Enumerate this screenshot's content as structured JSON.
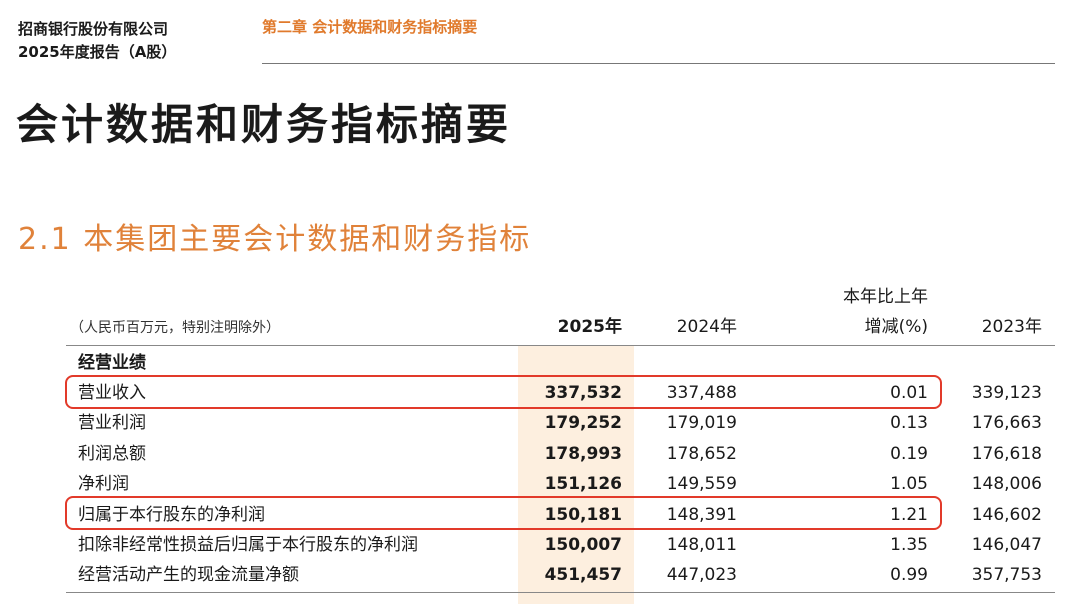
{
  "header": {
    "company": "招商银行股份有限公司",
    "report": "2025年度报告（A股）",
    "chapter": "第二章 会计数据和财务指标摘要"
  },
  "title": "会计数据和财务指标摘要",
  "section_title": "2.1 本集团主要会计数据和财务指标",
  "table": {
    "note": "（人民币百万元，特别注明除外）",
    "change_header_top": "本年比上年",
    "columns": [
      "2025年",
      "2024年",
      "增减(%)",
      "2023年"
    ],
    "group": "经营业绩",
    "rows": [
      [
        "营业收入",
        "337,532",
        "337,488",
        "0.01",
        "339,123"
      ],
      [
        "营业利润",
        "179,252",
        "179,019",
        "0.13",
        "176,663"
      ],
      [
        "利润总额",
        "178,993",
        "178,652",
        "0.19",
        "176,618"
      ],
      [
        "净利润",
        "151,126",
        "149,559",
        "1.05",
        "148,006"
      ],
      [
        "归属于本行股东的净利润",
        "150,181",
        "148,391",
        "1.21",
        "146,602"
      ],
      [
        "扣除非经常性损益后归属于本行股东的净利润",
        "150,007",
        "148,011",
        "1.35",
        "146,047"
      ],
      [
        "经营活动产生的现金流量净额",
        "451,457",
        "447,023",
        "0.99",
        "357,753"
      ]
    ]
  }
}
